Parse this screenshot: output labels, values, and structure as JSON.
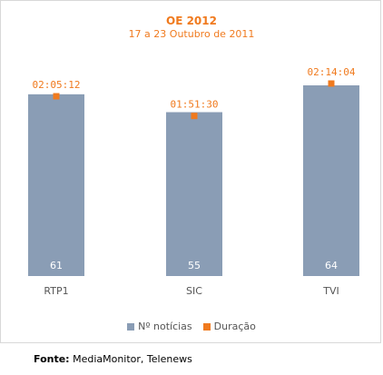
{
  "chart_data": {
    "type": "bar",
    "title": "OE 2012",
    "subtitle": "17 a 23 Outubro de 2011",
    "categories": [
      "RTP1",
      "SIC",
      "TVI"
    ],
    "series": [
      {
        "name": "Nº notícias",
        "values": [
          61,
          55,
          64
        ],
        "color": "#8a9db5"
      },
      {
        "name": "Duração",
        "values": [
          "02:05:12",
          "01:51:30",
          "02:14:04"
        ],
        "seconds": [
          7512,
          6690,
          8044
        ],
        "color": "#f07a1e"
      }
    ],
    "ylim_count": [
      0,
      72
    ],
    "grid": false,
    "legend_position": "bottom"
  },
  "source": {
    "label": "Fonte:",
    "text": "MediaMonitor, Telenews"
  }
}
